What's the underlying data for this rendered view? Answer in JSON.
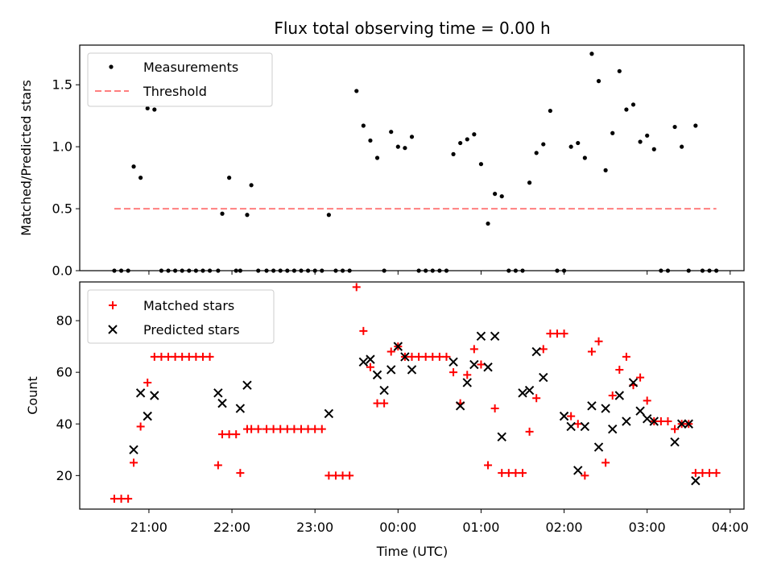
{
  "chart_data": [
    {
      "type": "scatter",
      "title": "Flux total observing time = 0.00 h",
      "ylabel": "Matched/Predicted stars",
      "ylim": [
        0,
        1.82
      ],
      "yticks": [
        0.0,
        0.5,
        1.0,
        1.5
      ],
      "ytick_labels": [
        "0.0",
        "0.5",
        "1.0",
        "1.5"
      ],
      "xlim": [
        "20:10",
        "04:10"
      ],
      "legend": {
        "placement": "top-left",
        "entries": [
          "Measurements",
          "Threshold"
        ]
      },
      "threshold": {
        "name": "Threshold",
        "y": 0.5,
        "x_range": [
          "20:35",
          "03:50"
        ],
        "color": "#ff7f7f",
        "style": "dashed"
      },
      "series": [
        {
          "name": "Measurements",
          "color": "#000000",
          "marker": "dot",
          "x": [
            "20:35",
            "20:40",
            "20:45",
            "20:49",
            "20:54",
            "20:59",
            "21:04",
            "21:09",
            "21:14",
            "21:19",
            "21:24",
            "21:29",
            "21:34",
            "21:39",
            "21:44",
            "21:50",
            "21:53",
            "21:58",
            "22:03",
            "22:06",
            "22:11",
            "22:14",
            "22:19",
            "22:25",
            "22:30",
            "22:35",
            "22:40",
            "22:45",
            "22:50",
            "22:55",
            "23:00",
            "23:05",
            "23:10",
            "23:15",
            "23:20",
            "23:25",
            "23:30",
            "23:35",
            "23:40",
            "23:45",
            "23:50",
            "23:55",
            "00:00",
            "00:05",
            "00:10",
            "00:15",
            "00:20",
            "00:25",
            "00:30",
            "00:35",
            "00:40",
            "00:45",
            "00:50",
            "00:55",
            "01:00",
            "01:05",
            "01:10",
            "01:15",
            "01:20",
            "01:25",
            "01:30",
            "01:35",
            "01:40",
            "01:45",
            "01:50",
            "01:55",
            "02:00",
            "02:05",
            "02:10",
            "02:15",
            "02:20",
            "02:25",
            "02:30",
            "02:35",
            "02:40",
            "02:45",
            "02:50",
            "02:55",
            "03:00",
            "03:05",
            "03:10",
            "03:15",
            "03:20",
            "03:25",
            "03:30",
            "03:35",
            "03:40",
            "03:45",
            "03:50"
          ],
          "y": [
            0.0,
            0.0,
            0.0,
            0.84,
            0.75,
            1.31,
            1.3,
            0.0,
            0.0,
            0.0,
            0.0,
            0.0,
            0.0,
            0.0,
            0.0,
            0.0,
            0.46,
            0.75,
            0.0,
            0.0,
            0.45,
            0.69,
            0.0,
            0.0,
            0.0,
            0.0,
            0.0,
            0.0,
            0.0,
            0.0,
            0.0,
            0.0,
            0.45,
            0.0,
            0.0,
            0.0,
            1.45,
            1.17,
            1.05,
            0.91,
            0.0,
            1.12,
            1.0,
            0.99,
            1.08,
            0.0,
            0.0,
            0.0,
            0.0,
            0.0,
            0.94,
            1.03,
            1.06,
            1.1,
            0.86,
            0.38,
            0.62,
            0.6,
            0.0,
            0.0,
            0.0,
            0.71,
            0.95,
            1.02,
            1.29,
            0.0,
            0.0,
            1.0,
            1.03,
            0.91,
            1.75,
            1.53,
            0.81,
            1.11,
            1.61,
            1.3,
            1.34,
            1.04,
            1.09,
            0.98,
            0.0,
            0.0,
            1.16,
            1.0,
            0.0,
            1.17,
            0.0,
            0.0,
            0.0
          ]
        }
      ]
    },
    {
      "type": "scatter",
      "xlabel": "Time (UTC)",
      "ylabel": "Count",
      "ylim": [
        7,
        95
      ],
      "yticks": [
        20,
        40,
        60,
        80
      ],
      "ytick_labels": [
        "20",
        "40",
        "60",
        "80"
      ],
      "xlim": [
        "20:10",
        "04:10"
      ],
      "xtick_labels": [
        "21:00",
        "22:00",
        "23:00",
        "00:00",
        "01:00",
        "02:00",
        "03:00",
        "04:00"
      ],
      "legend": {
        "placement": "top-left",
        "entries": [
          "Matched stars",
          "Predicted stars"
        ]
      },
      "series": [
        {
          "name": "Matched stars",
          "color": "#ff0000",
          "marker": "plus",
          "x": [
            "20:35",
            "20:40",
            "20:45",
            "20:49",
            "20:54",
            "20:59",
            "21:04",
            "21:09",
            "21:14",
            "21:19",
            "21:24",
            "21:29",
            "21:34",
            "21:39",
            "21:44",
            "21:50",
            "21:53",
            "21:58",
            "22:03",
            "22:06",
            "22:11",
            "22:14",
            "22:19",
            "22:25",
            "22:30",
            "22:35",
            "22:40",
            "22:45",
            "22:50",
            "22:55",
            "23:00",
            "23:05",
            "23:10",
            "23:15",
            "23:20",
            "23:25",
            "23:30",
            "23:35",
            "23:40",
            "23:45",
            "23:50",
            "23:55",
            "00:00",
            "00:05",
            "00:10",
            "00:15",
            "00:20",
            "00:25",
            "00:30",
            "00:35",
            "00:40",
            "00:45",
            "00:50",
            "00:55",
            "01:00",
            "01:05",
            "01:10",
            "01:15",
            "01:20",
            "01:25",
            "01:30",
            "01:35",
            "01:40",
            "01:45",
            "01:50",
            "01:55",
            "02:00",
            "02:05",
            "02:10",
            "02:15",
            "02:20",
            "02:25",
            "02:30",
            "02:35",
            "02:40",
            "02:45",
            "02:50",
            "02:55",
            "03:00",
            "03:05",
            "03:10",
            "03:15",
            "03:20",
            "03:25",
            "03:30",
            "03:35",
            "03:40",
            "03:45",
            "03:50"
          ],
          "y": [
            11,
            11,
            11,
            25,
            39,
            56,
            66,
            66,
            66,
            66,
            66,
            66,
            66,
            66,
            66,
            24,
            36,
            36,
            36,
            21,
            38,
            38,
            38,
            38,
            38,
            38,
            38,
            38,
            38,
            38,
            38,
            38,
            20,
            20,
            20,
            20,
            93,
            76,
            62,
            48,
            48,
            68,
            70,
            66,
            66,
            66,
            66,
            66,
            66,
            66,
            60,
            48,
            59,
            69,
            63,
            24,
            46,
            21,
            21,
            21,
            21,
            37,
            50,
            69,
            75,
            75,
            75,
            43,
            40,
            20,
            68,
            72,
            25,
            51,
            61,
            66,
            55,
            58,
            49,
            41,
            41,
            41,
            38,
            40,
            40,
            21,
            21,
            21,
            21
          ]
        },
        {
          "name": "Predicted stars",
          "color": "#000000",
          "marker": "x",
          "x": [
            "20:49",
            "20:54",
            "20:59",
            "21:04",
            "21:50",
            "21:53",
            "22:06",
            "22:11",
            "23:10",
            "23:35",
            "23:40",
            "23:45",
            "23:50",
            "23:55",
            "00:00",
            "00:05",
            "00:10",
            "00:40",
            "00:45",
            "00:50",
            "00:55",
            "01:00",
            "01:05",
            "01:10",
            "01:15",
            "01:30",
            "01:35",
            "01:40",
            "01:45",
            "02:00",
            "02:05",
            "02:10",
            "02:15",
            "02:20",
            "02:25",
            "02:30",
            "02:35",
            "02:40",
            "02:45",
            "02:50",
            "02:55",
            "03:00",
            "03:05",
            "03:20",
            "03:25",
            "03:30",
            "03:35"
          ],
          "y": [
            30,
            52,
            43,
            51,
            52,
            48,
            46,
            55,
            44,
            64,
            65,
            59,
            53,
            61,
            70,
            66,
            61,
            64,
            47,
            56,
            63,
            74,
            62,
            74,
            35,
            52,
            53,
            68,
            58,
            43,
            39,
            22,
            39,
            47,
            31,
            46,
            38,
            51,
            41,
            56,
            45,
            42,
            41,
            33,
            40,
            40,
            18
          ]
        }
      ]
    }
  ]
}
